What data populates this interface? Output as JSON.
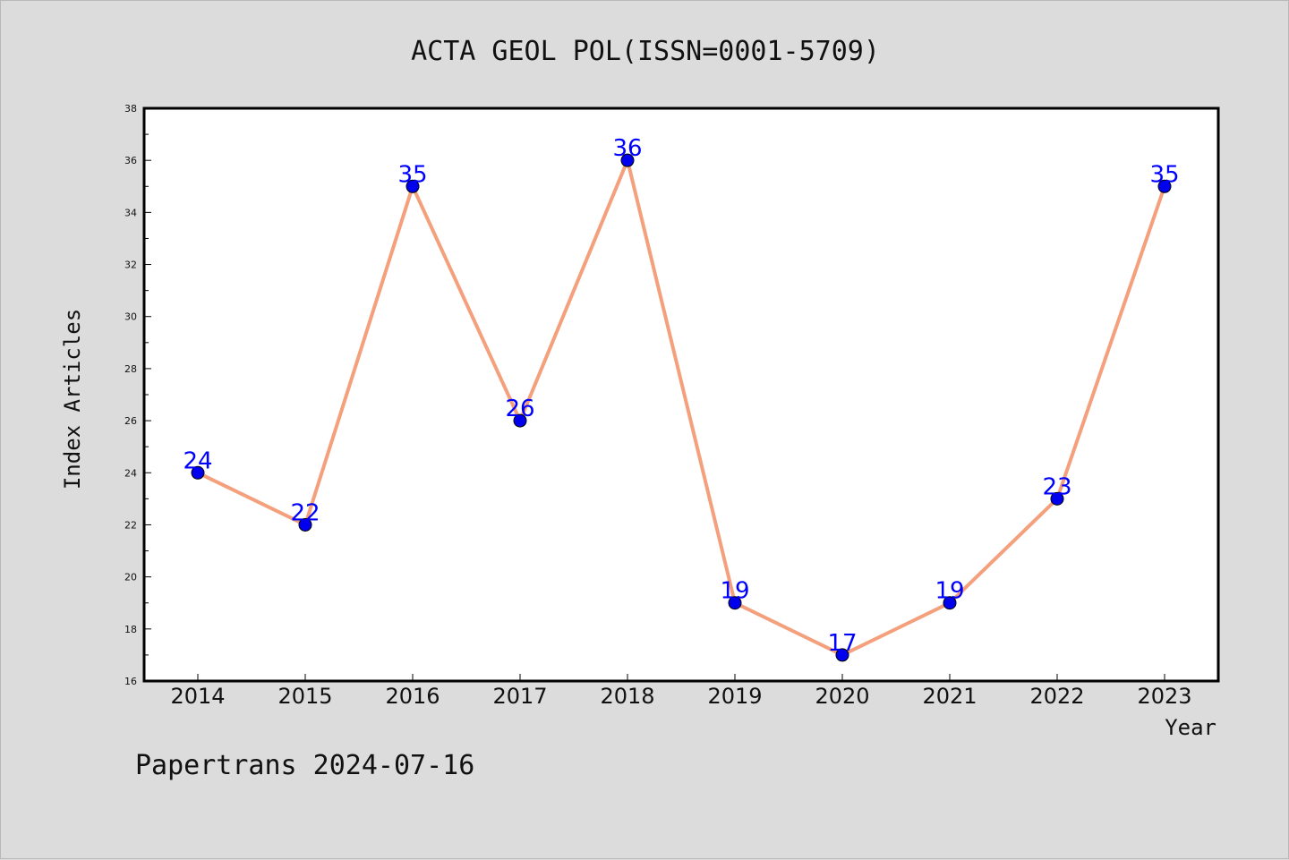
{
  "chart_data": {
    "type": "line",
    "title": "ACTA GEOL POL(ISSN=0001-5709)",
    "xlabel": "Year",
    "ylabel": "Index Articles",
    "x": [
      "2014",
      "2015",
      "2016",
      "2017",
      "2018",
      "2019",
      "2020",
      "2021",
      "2022",
      "2023"
    ],
    "series": [
      {
        "values": [
          24,
          22,
          35,
          26,
          36,
          19,
          17,
          19,
          23,
          35
        ]
      }
    ],
    "ylim": [
      16,
      38
    ],
    "yticks": [
      16,
      18,
      20,
      22,
      24,
      26,
      28,
      30,
      32,
      34,
      36,
      38
    ],
    "grid": false,
    "line_color": "#f4a07c",
    "marker_color": "#0000ee",
    "label_color": "#0000ff",
    "background": "#dcdcdc",
    "plot_background": "#ffffff"
  },
  "footer": "Papertrans 2024-07-16"
}
